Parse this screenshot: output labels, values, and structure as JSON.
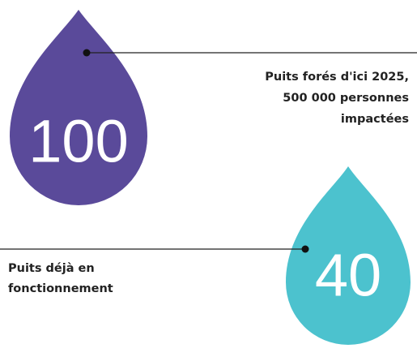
{
  "items": [
    {
      "number": "100",
      "label_lines": [
        "Puits forés d'ici 2025,",
        "500 000 personnes",
        "impactées"
      ]
    },
    {
      "number": "40",
      "label_lines": [
        "Puits déjà en",
        "fonctionnement"
      ]
    }
  ]
}
